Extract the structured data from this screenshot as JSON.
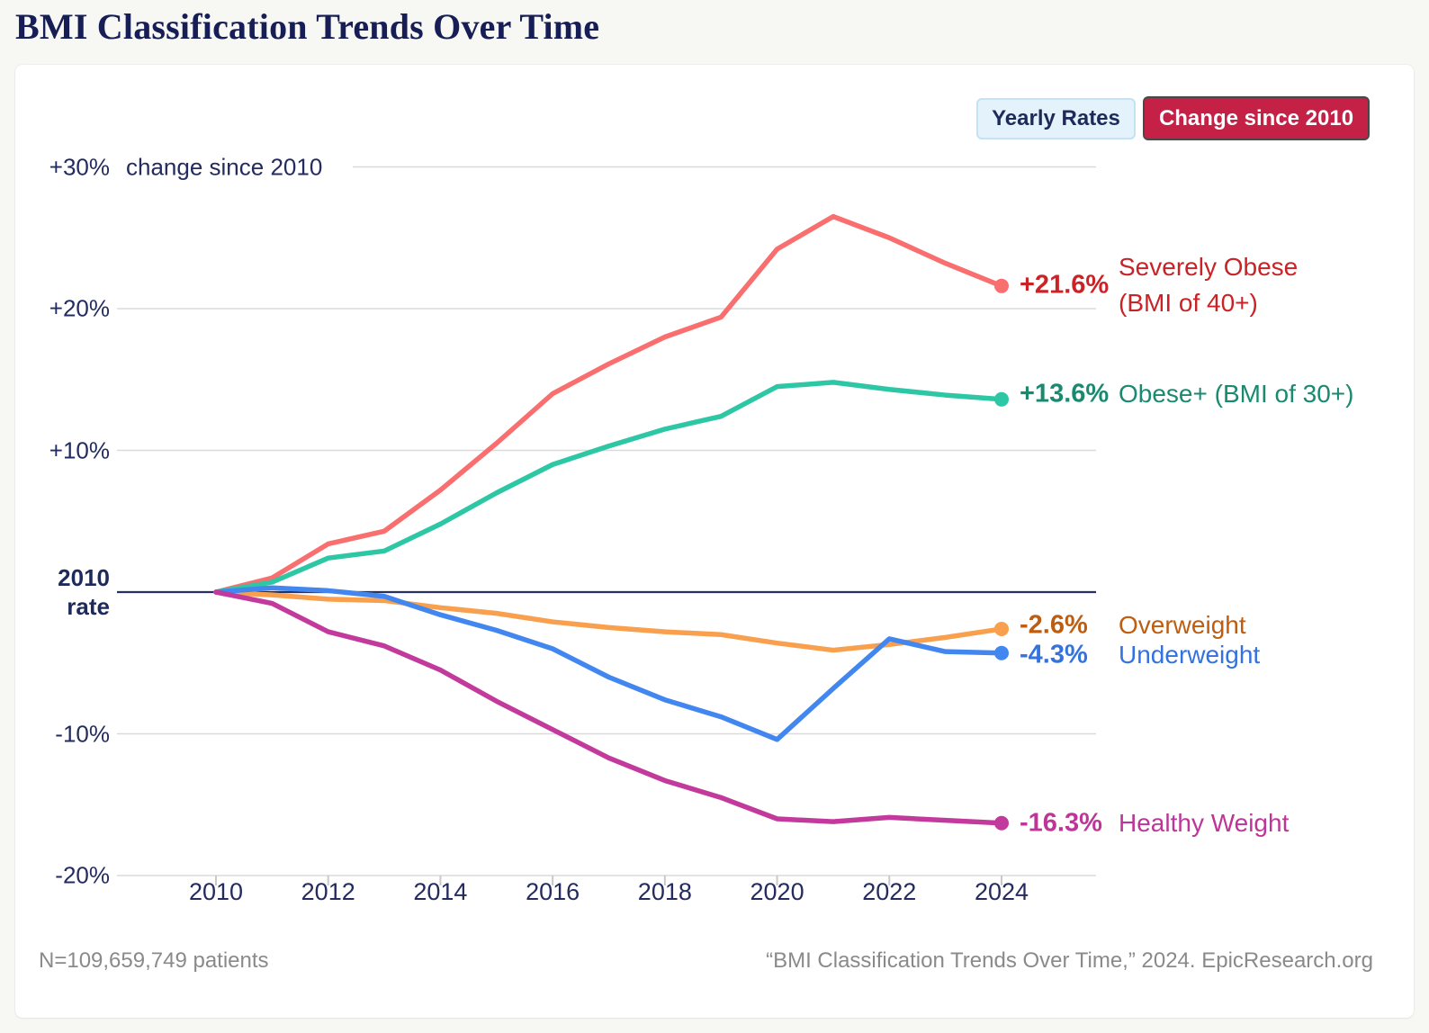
{
  "page": {
    "title": "BMI Classification Trends Over Time",
    "footer_left": "N=109,659,749 patients",
    "footer_right": "“BMI Classification Trends Over Time,” 2024. EpicResearch.org"
  },
  "toolbar": {
    "yearly_rates_label": "Yearly Rates",
    "change_since_2010_label": "Change since 2010",
    "inactive_bg": "#e3f2fb",
    "active_bg": "#c52045"
  },
  "chart_data": {
    "type": "line",
    "x": [
      2010,
      2011,
      2012,
      2013,
      2014,
      2015,
      2016,
      2017,
      2018,
      2019,
      2020,
      2021,
      2022,
      2023,
      2024
    ],
    "x_tick_labels": [
      "2010",
      "2012",
      "2014",
      "2016",
      "2018",
      "2020",
      "2022",
      "2024"
    ],
    "y_axis": {
      "annotation": "change since 2010",
      "zero_label_lines": [
        "2010",
        "rate"
      ],
      "ticks": [
        {
          "value": 30,
          "label": "+30%"
        },
        {
          "value": 20,
          "label": "+20%"
        },
        {
          "value": 10,
          "label": "+10%"
        },
        {
          "value": -10,
          "label": "-10%"
        },
        {
          "value": -20,
          "label": "-20%"
        }
      ],
      "ylim": [
        -20,
        30
      ]
    },
    "grid": true,
    "legend_position": "right-of-line-ends",
    "colors": {
      "grid_line": "#dadada",
      "zero_line": "#27305e",
      "tick_mark": "#c9c9c9",
      "axis_text": "#232b5f"
    },
    "series": [
      {
        "id": "severely-obese",
        "name_lines": [
          "Severely Obese",
          "(BMI of 40+)"
        ],
        "value_label": "+21.6%",
        "line_color": "#f96e6e",
        "label_color": "#c92327",
        "values": [
          0,
          1.0,
          3.4,
          4.3,
          7.2,
          10.5,
          14.0,
          16.1,
          18.0,
          19.4,
          24.2,
          26.5,
          25.0,
          23.2,
          21.6
        ]
      },
      {
        "id": "obese-plus",
        "name_lines": [
          "Obese+ (BMI of 30+)"
        ],
        "value_label": "+13.6%",
        "line_color": "#2ec7a6",
        "label_color": "#198a70",
        "values": [
          0,
          0.7,
          2.4,
          2.9,
          4.8,
          7.0,
          9.0,
          10.3,
          11.5,
          12.4,
          14.5,
          14.8,
          14.3,
          13.9,
          13.6
        ]
      },
      {
        "id": "overweight",
        "name_lines": [
          "Overweight"
        ],
        "value_label": "-2.6%",
        "line_color": "#f8a04e",
        "label_color": "#bd5d11",
        "values": [
          0,
          -0.2,
          -0.5,
          -0.6,
          -1.1,
          -1.5,
          -2.1,
          -2.5,
          -2.8,
          -3.0,
          -3.6,
          -4.1,
          -3.7,
          -3.2,
          -2.6
        ]
      },
      {
        "id": "underweight",
        "name_lines": [
          "Underweight"
        ],
        "value_label": "-4.3%",
        "line_color": "#4286ef",
        "label_color": "#3372df",
        "values": [
          0,
          0.3,
          0.1,
          -0.3,
          -1.6,
          -2.7,
          -4.0,
          -6.0,
          -7.6,
          -8.8,
          -10.4,
          -6.8,
          -3.3,
          -4.2,
          -4.3
        ]
      },
      {
        "id": "healthy-weight",
        "name_lines": [
          "Healthy Weight"
        ],
        "value_label": "-16.3%",
        "line_color": "#c23a9c",
        "label_color": "#bd3697",
        "values": [
          0,
          -0.8,
          -2.8,
          -3.8,
          -5.5,
          -7.7,
          -9.7,
          -11.7,
          -13.3,
          -14.5,
          -16.0,
          -16.2,
          -15.9,
          -16.1,
          -16.3
        ]
      }
    ]
  }
}
